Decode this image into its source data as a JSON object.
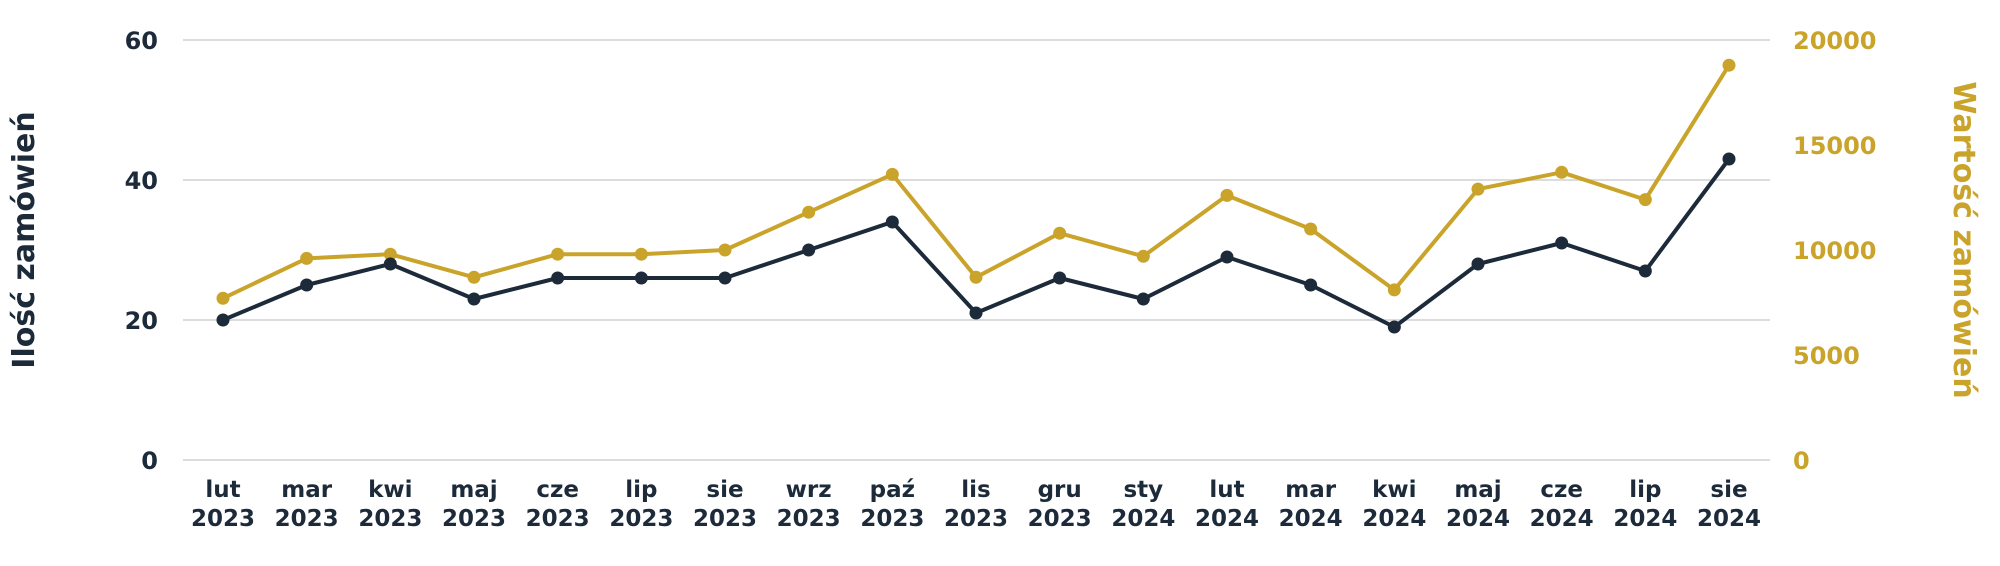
{
  "chart_data": {
    "type": "line",
    "categories": [
      [
        "lut",
        "2023"
      ],
      [
        "mar",
        "2023"
      ],
      [
        "kwi",
        "2023"
      ],
      [
        "maj",
        "2023"
      ],
      [
        "cze",
        "2023"
      ],
      [
        "lip",
        "2023"
      ],
      [
        "sie",
        "2023"
      ],
      [
        "wrz",
        "2023"
      ],
      [
        "paź",
        "2023"
      ],
      [
        "lis",
        "2023"
      ],
      [
        "gru",
        "2023"
      ],
      [
        "sty",
        "2024"
      ],
      [
        "lut",
        "2024"
      ],
      [
        "mar",
        "2024"
      ],
      [
        "kwi",
        "2024"
      ],
      [
        "maj",
        "2024"
      ],
      [
        "cze",
        "2024"
      ],
      [
        "lip",
        "2024"
      ],
      [
        "sie",
        "2024"
      ]
    ],
    "series": [
      {
        "axis": "left",
        "color": "#1c2a3a",
        "values": [
          20,
          25,
          28,
          23,
          26,
          26,
          26,
          30,
          34,
          21,
          26,
          23,
          29,
          25,
          19,
          28,
          31,
          27,
          43
        ]
      },
      {
        "axis": "right",
        "color": "#c9a32a",
        "values": [
          7700,
          9600,
          9800,
          8700,
          9800,
          9800,
          10000,
          11800,
          13600,
          8700,
          10800,
          9700,
          12600,
          11000,
          8100,
          12900,
          13700,
          12400,
          18800
        ]
      }
    ],
    "ylabel_left": "Ilość zamówień",
    "ylabel_right": "Wartość zamówień",
    "ylim_left": [
      0,
      60
    ],
    "yticks_left": [
      "0",
      "20",
      "40",
      "60"
    ],
    "ylim_right": [
      0,
      20000
    ],
    "yticks_right": [
      "0",
      "5000",
      "10000",
      "15000",
      "20000"
    ],
    "colors": {
      "left_axis": "#1c2a3a",
      "right_axis": "#c9a32a",
      "grid": "#dcdcdc"
    },
    "grid": true,
    "legend": "none"
  }
}
